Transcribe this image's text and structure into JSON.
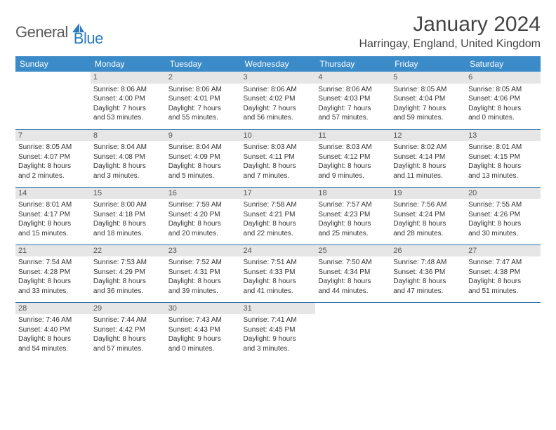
{
  "logo": {
    "general": "General",
    "blue": "Blue"
  },
  "title": "January 2024",
  "location": "Harringay, England, United Kingdom",
  "colors": {
    "header_bg": "#3b8bc9",
    "header_text": "#ffffff",
    "row_border": "#2b6fa8",
    "daynum_bg": "#e6e6e6",
    "text": "#333333",
    "logo_general": "#5a5a5a",
    "logo_blue": "#2b7bbf"
  },
  "weekdays": [
    "Sunday",
    "Monday",
    "Tuesday",
    "Wednesday",
    "Thursday",
    "Friday",
    "Saturday"
  ],
  "weeks": [
    [
      null,
      {
        "n": "1",
        "sr": "Sunrise: 8:06 AM",
        "ss": "Sunset: 4:00 PM",
        "d1": "Daylight: 7 hours",
        "d2": "and 53 minutes."
      },
      {
        "n": "2",
        "sr": "Sunrise: 8:06 AM",
        "ss": "Sunset: 4:01 PM",
        "d1": "Daylight: 7 hours",
        "d2": "and 55 minutes."
      },
      {
        "n": "3",
        "sr": "Sunrise: 8:06 AM",
        "ss": "Sunset: 4:02 PM",
        "d1": "Daylight: 7 hours",
        "d2": "and 56 minutes."
      },
      {
        "n": "4",
        "sr": "Sunrise: 8:06 AM",
        "ss": "Sunset: 4:03 PM",
        "d1": "Daylight: 7 hours",
        "d2": "and 57 minutes."
      },
      {
        "n": "5",
        "sr": "Sunrise: 8:05 AM",
        "ss": "Sunset: 4:04 PM",
        "d1": "Daylight: 7 hours",
        "d2": "and 59 minutes."
      },
      {
        "n": "6",
        "sr": "Sunrise: 8:05 AM",
        "ss": "Sunset: 4:06 PM",
        "d1": "Daylight: 8 hours",
        "d2": "and 0 minutes."
      }
    ],
    [
      {
        "n": "7",
        "sr": "Sunrise: 8:05 AM",
        "ss": "Sunset: 4:07 PM",
        "d1": "Daylight: 8 hours",
        "d2": "and 2 minutes."
      },
      {
        "n": "8",
        "sr": "Sunrise: 8:04 AM",
        "ss": "Sunset: 4:08 PM",
        "d1": "Daylight: 8 hours",
        "d2": "and 3 minutes."
      },
      {
        "n": "9",
        "sr": "Sunrise: 8:04 AM",
        "ss": "Sunset: 4:09 PM",
        "d1": "Daylight: 8 hours",
        "d2": "and 5 minutes."
      },
      {
        "n": "10",
        "sr": "Sunrise: 8:03 AM",
        "ss": "Sunset: 4:11 PM",
        "d1": "Daylight: 8 hours",
        "d2": "and 7 minutes."
      },
      {
        "n": "11",
        "sr": "Sunrise: 8:03 AM",
        "ss": "Sunset: 4:12 PM",
        "d1": "Daylight: 8 hours",
        "d2": "and 9 minutes."
      },
      {
        "n": "12",
        "sr": "Sunrise: 8:02 AM",
        "ss": "Sunset: 4:14 PM",
        "d1": "Daylight: 8 hours",
        "d2": "and 11 minutes."
      },
      {
        "n": "13",
        "sr": "Sunrise: 8:01 AM",
        "ss": "Sunset: 4:15 PM",
        "d1": "Daylight: 8 hours",
        "d2": "and 13 minutes."
      }
    ],
    [
      {
        "n": "14",
        "sr": "Sunrise: 8:01 AM",
        "ss": "Sunset: 4:17 PM",
        "d1": "Daylight: 8 hours",
        "d2": "and 15 minutes."
      },
      {
        "n": "15",
        "sr": "Sunrise: 8:00 AM",
        "ss": "Sunset: 4:18 PM",
        "d1": "Daylight: 8 hours",
        "d2": "and 18 minutes."
      },
      {
        "n": "16",
        "sr": "Sunrise: 7:59 AM",
        "ss": "Sunset: 4:20 PM",
        "d1": "Daylight: 8 hours",
        "d2": "and 20 minutes."
      },
      {
        "n": "17",
        "sr": "Sunrise: 7:58 AM",
        "ss": "Sunset: 4:21 PM",
        "d1": "Daylight: 8 hours",
        "d2": "and 22 minutes."
      },
      {
        "n": "18",
        "sr": "Sunrise: 7:57 AM",
        "ss": "Sunset: 4:23 PM",
        "d1": "Daylight: 8 hours",
        "d2": "and 25 minutes."
      },
      {
        "n": "19",
        "sr": "Sunrise: 7:56 AM",
        "ss": "Sunset: 4:24 PM",
        "d1": "Daylight: 8 hours",
        "d2": "and 28 minutes."
      },
      {
        "n": "20",
        "sr": "Sunrise: 7:55 AM",
        "ss": "Sunset: 4:26 PM",
        "d1": "Daylight: 8 hours",
        "d2": "and 30 minutes."
      }
    ],
    [
      {
        "n": "21",
        "sr": "Sunrise: 7:54 AM",
        "ss": "Sunset: 4:28 PM",
        "d1": "Daylight: 8 hours",
        "d2": "and 33 minutes."
      },
      {
        "n": "22",
        "sr": "Sunrise: 7:53 AM",
        "ss": "Sunset: 4:29 PM",
        "d1": "Daylight: 8 hours",
        "d2": "and 36 minutes."
      },
      {
        "n": "23",
        "sr": "Sunrise: 7:52 AM",
        "ss": "Sunset: 4:31 PM",
        "d1": "Daylight: 8 hours",
        "d2": "and 39 minutes."
      },
      {
        "n": "24",
        "sr": "Sunrise: 7:51 AM",
        "ss": "Sunset: 4:33 PM",
        "d1": "Daylight: 8 hours",
        "d2": "and 41 minutes."
      },
      {
        "n": "25",
        "sr": "Sunrise: 7:50 AM",
        "ss": "Sunset: 4:34 PM",
        "d1": "Daylight: 8 hours",
        "d2": "and 44 minutes."
      },
      {
        "n": "26",
        "sr": "Sunrise: 7:48 AM",
        "ss": "Sunset: 4:36 PM",
        "d1": "Daylight: 8 hours",
        "d2": "and 47 minutes."
      },
      {
        "n": "27",
        "sr": "Sunrise: 7:47 AM",
        "ss": "Sunset: 4:38 PM",
        "d1": "Daylight: 8 hours",
        "d2": "and 51 minutes."
      }
    ],
    [
      {
        "n": "28",
        "sr": "Sunrise: 7:46 AM",
        "ss": "Sunset: 4:40 PM",
        "d1": "Daylight: 8 hours",
        "d2": "and 54 minutes."
      },
      {
        "n": "29",
        "sr": "Sunrise: 7:44 AM",
        "ss": "Sunset: 4:42 PM",
        "d1": "Daylight: 8 hours",
        "d2": "and 57 minutes."
      },
      {
        "n": "30",
        "sr": "Sunrise: 7:43 AM",
        "ss": "Sunset: 4:43 PM",
        "d1": "Daylight: 9 hours",
        "d2": "and 0 minutes."
      },
      {
        "n": "31",
        "sr": "Sunrise: 7:41 AM",
        "ss": "Sunset: 4:45 PM",
        "d1": "Daylight: 9 hours",
        "d2": "and 3 minutes."
      },
      null,
      null,
      null
    ]
  ]
}
